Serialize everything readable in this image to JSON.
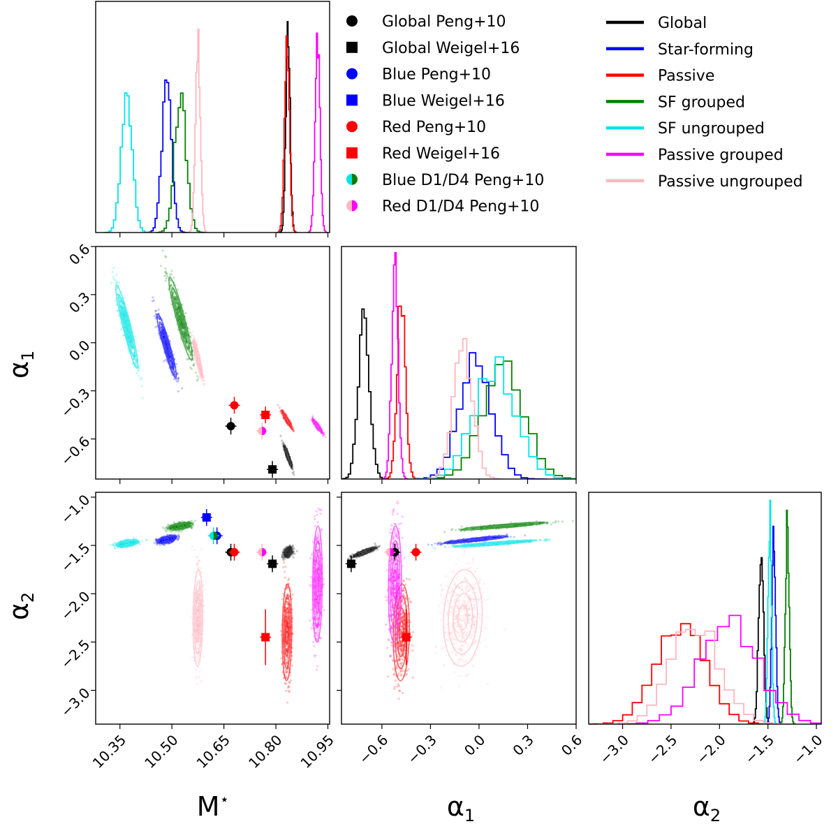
{
  "chart_data": {
    "type": "scatter",
    "title": "",
    "parameters": [
      "M*",
      "alpha_1",
      "alpha_2"
    ],
    "axis_labels": {
      "mstar": "M⋆",
      "alpha1": "α1",
      "alpha2": "α2"
    },
    "axis_label_parts": {
      "mstar": {
        "main": "M",
        "sup": "⋆"
      },
      "alpha1": {
        "main": "α",
        "sub": "1"
      },
      "alpha2": {
        "main": "α",
        "sub": "2"
      }
    },
    "ranges": {
      "mstar": [
        10.28,
        10.955
      ],
      "alpha1": [
        -0.85,
        0.6
      ],
      "alpha2": [
        -3.35,
        -0.95
      ]
    },
    "ticks": {
      "mstar": [
        10.35,
        10.5,
        10.65,
        10.8,
        10.95
      ],
      "alpha1": [
        -0.6,
        -0.3,
        0.0,
        0.3,
        0.6
      ],
      "alpha2": [
        -3.0,
        -2.5,
        -2.0,
        -1.5,
        -1.0
      ]
    },
    "tick_labels": {
      "mstar": [
        "10.35",
        "10.50",
        "10.65",
        "10.80",
        "10.95"
      ],
      "alpha1": [
        "−0.6",
        "−0.3",
        "0.0",
        "0.3",
        "0.6"
      ],
      "alpha2": [
        "−3.0",
        "−2.5",
        "−2.0",
        "−1.5",
        "−1.0"
      ]
    },
    "posterior_samples": [
      {
        "name": "Global",
        "color": "#000000",
        "mstar": [
          10.835,
          0.006
        ],
        "alpha1": [
          -0.71,
          0.035
        ],
        "alpha2": [
          -1.57,
          0.025
        ]
      },
      {
        "name": "Star-forming",
        "color": "#0000ff",
        "mstar": [
          10.485,
          0.014
        ],
        "alpha1": [
          -0.02,
          0.1
        ],
        "alpha2": [
          -1.44,
          0.02
        ]
      },
      {
        "name": "Passive",
        "color": "#ff0000",
        "mstar": [
          10.832,
          0.007
        ],
        "alpha1": [
          -0.48,
          0.025
        ],
        "alpha2": [
          -2.4,
          0.25
        ]
      },
      {
        "name": "SF grouped",
        "color": "#008000",
        "mstar": [
          10.525,
          0.017
        ],
        "alpha1": [
          0.15,
          0.13
        ],
        "alpha2": [
          -1.3,
          0.02
        ]
      },
      {
        "name": "SF ungrouped",
        "color": "#00e5e5",
        "mstar": [
          10.37,
          0.016
        ],
        "alpha1": [
          0.1,
          0.13
        ],
        "alpha2": [
          -1.48,
          0.018
        ]
      },
      {
        "name": "Passive grouped",
        "color": "#ff00ff",
        "mstar": [
          10.92,
          0.007
        ],
        "alpha1": [
          -0.52,
          0.02
        ],
        "alpha2": [
          -1.9,
          0.3
        ]
      },
      {
        "name": "Passive ungrouped",
        "color": "#ffb6c1",
        "mstar": [
          10.575,
          0.007
        ],
        "alpha1": [
          -0.1,
          0.06
        ],
        "alpha2": [
          -2.25,
          0.25
        ]
      }
    ],
    "reference_points": [
      {
        "name": "Global Peng+10",
        "marker": "circle",
        "color": "#000000",
        "mstar": 10.67,
        "alpha1": -0.52,
        "alpha2": -1.57
      },
      {
        "name": "Global Weigel+16",
        "marker": "square",
        "color": "#000000",
        "mstar": 10.79,
        "alpha1": -0.79,
        "alpha2": -1.69
      },
      {
        "name": "Blue Peng+10",
        "marker": "circle",
        "color": "#0000ff",
        "mstar": 10.63,
        "alpha1": null,
        "alpha2": -1.4
      },
      {
        "name": "Blue Weigel+16",
        "marker": "square",
        "color": "#0000ff",
        "mstar": 10.6,
        "alpha1": null,
        "alpha2": -1.21
      },
      {
        "name": "Red Peng+10",
        "marker": "circle",
        "color": "#ff0000",
        "mstar": 10.68,
        "alpha1": -0.39,
        "alpha2": -1.57
      },
      {
        "name": "Red Weigel+16",
        "marker": "square",
        "color": "#ff0000",
        "mstar": 10.77,
        "alpha1": -0.45,
        "alpha2": -2.45
      },
      {
        "name": "Blue D1/D4 Peng+10",
        "marker": "half-circle",
        "color": "#00e5e5",
        "color2": "#008000",
        "mstar": 10.62,
        "alpha1": null,
        "alpha2": -1.4
      },
      {
        "name": "Red D1/D4 Peng+10",
        "marker": "half-circle",
        "color": "#ffb6c1",
        "color2": "#ff00ff",
        "mstar": 10.76,
        "alpha1": -0.55,
        "alpha2": -1.57
      }
    ],
    "legend_markers": [
      {
        "label": "Global Peng+10",
        "marker": "circle",
        "color": "#000000"
      },
      {
        "label": "Global Weigel+16",
        "marker": "square",
        "color": "#000000"
      },
      {
        "label": "Blue Peng+10",
        "marker": "circle",
        "color": "#0000ff"
      },
      {
        "label": "Blue Weigel+16",
        "marker": "square",
        "color": "#0000ff"
      },
      {
        "label": "Red Peng+10",
        "marker": "circle",
        "color": "#ff0000"
      },
      {
        "label": "Red Weigel+16",
        "marker": "square",
        "color": "#ff0000"
      },
      {
        "label": "Blue D1/D4 Peng+10",
        "marker": "half-circle",
        "color": "#00e5e5",
        "color2": "#008000"
      },
      {
        "label": "Red D1/D4 Peng+10",
        "marker": "half-circle",
        "color": "#ffb6c1",
        "color2": "#ff00ff"
      }
    ],
    "legend_lines": [
      {
        "label": "Global",
        "color": "#000000"
      },
      {
        "label": "Star-forming",
        "color": "#0000ff"
      },
      {
        "label": "Passive",
        "color": "#ff0000"
      },
      {
        "label": "SF grouped",
        "color": "#008000"
      },
      {
        "label": "SF ungrouped",
        "color": "#00e5e5"
      },
      {
        "label": "Passive grouped",
        "color": "#ff00ff"
      },
      {
        "label": "Passive ungrouped",
        "color": "#ffb6c1"
      }
    ]
  }
}
